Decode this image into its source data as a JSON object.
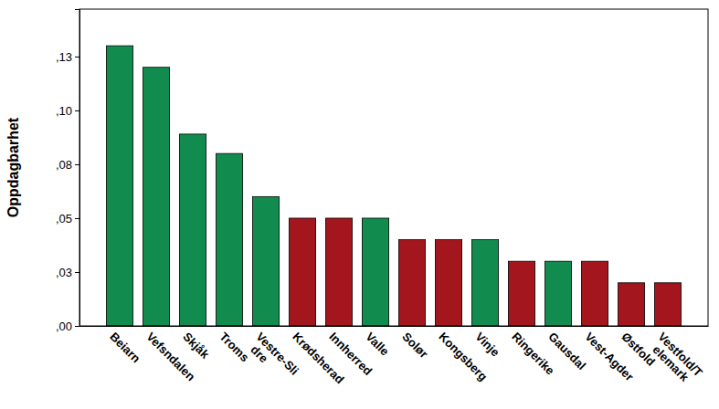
{
  "chart_data": {
    "type": "bar",
    "y_label": "Oppdagbarhet",
    "categories": [
      "Beiarn",
      "Vefsndalen",
      "Skjåk",
      "Troms",
      "Vestre-Slidre",
      "Krødsherad",
      "Innherred",
      "Valle",
      "Solør",
      "Kongsberg",
      "Vinje",
      "Ringerike",
      "Gausdal",
      "Vest-Agder",
      "Østfold",
      "Vestfold/Telemark"
    ],
    "values": [
      0.13,
      0.12,
      0.089,
      0.08,
      0.06,
      0.05,
      0.05,
      0.05,
      0.04,
      0.04,
      0.04,
      0.03,
      0.03,
      0.03,
      0.02,
      0.02
    ],
    "colors": [
      "#118c4e",
      "#118c4e",
      "#118c4e",
      "#118c4e",
      "#118c4e",
      "#a3161d",
      "#a3161d",
      "#118c4e",
      "#a3161d",
      "#a3161d",
      "#118c4e",
      "#a3161d",
      "#118c4e",
      "#a3161d",
      "#a3161d",
      "#a3161d"
    ],
    "ylim": [
      0,
      0.147
    ],
    "yticks": [
      {
        "value": 0,
        "label": ",00"
      },
      {
        "value": 0.025,
        "label": ",03"
      },
      {
        "value": 0.05,
        "label": ",05"
      },
      {
        "value": 0.075,
        "label": ",08"
      },
      {
        "value": 0.1,
        "label": ",10"
      },
      {
        "value": 0.125,
        "label": ",13"
      }
    ],
    "grid": false
  }
}
